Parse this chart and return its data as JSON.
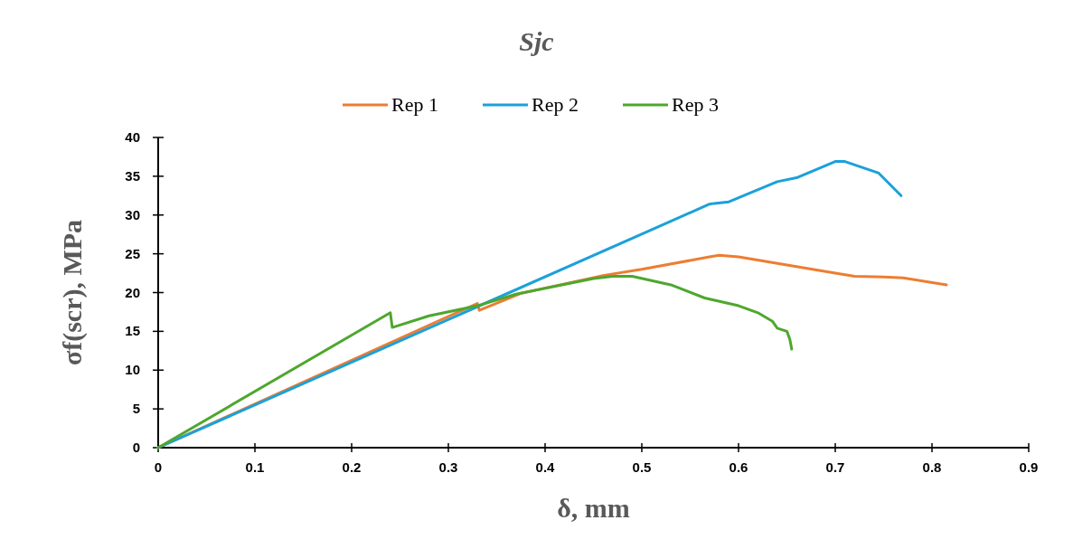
{
  "chart_data": {
    "type": "line",
    "title": "Sjc",
    "xlabel": "δ, mm",
    "ylabel": "σf(scr), MPa",
    "xlim": [
      0,
      0.9
    ],
    "xticks": [
      0,
      0.1,
      0.2,
      0.3,
      0.4,
      0.5,
      0.6,
      0.7,
      0.8,
      0.9
    ],
    "ylim": [
      0,
      40
    ],
    "yticks": [
      0,
      5,
      10,
      15,
      20,
      25,
      30,
      35,
      40
    ],
    "grid": false,
    "legend": "top",
    "marker": "none",
    "line_style": "solid",
    "series": [
      {
        "name": "Rep 1",
        "color": "#ed7d31",
        "x": [
          0,
          0.33,
          0.332,
          0.375,
          0.46,
          0.5,
          0.57,
          0.58,
          0.6,
          0.7,
          0.72,
          0.75,
          0.77,
          0.815
        ],
        "values": [
          0,
          18.6,
          17.7,
          19.9,
          22.2,
          23,
          24.6,
          24.8,
          24.6,
          22.5,
          22.1,
          22,
          21.9,
          21
        ]
      },
      {
        "name": "Rep 2",
        "color": "#1ba1d9",
        "x": [
          0,
          0.57,
          0.575,
          0.59,
          0.64,
          0.66,
          0.7,
          0.71,
          0.745,
          0.768
        ],
        "values": [
          0,
          31.4,
          31.5,
          31.7,
          34.3,
          34.8,
          36.9,
          36.9,
          35.4,
          32.5
        ]
      },
      {
        "name": "Rep 3",
        "color": "#4ea72e",
        "x": [
          0,
          0.24,
          0.242,
          0.28,
          0.33,
          0.37,
          0.45,
          0.47,
          0.49,
          0.53,
          0.565,
          0.6,
          0.62,
          0.635,
          0.64,
          0.65,
          0.653,
          0.655
        ],
        "values": [
          0,
          17.4,
          15.5,
          17,
          18.3,
          19.8,
          21.8,
          22.1,
          22.1,
          21,
          19.3,
          18.3,
          17.4,
          16.3,
          15.4,
          15,
          14,
          12.7
        ]
      }
    ]
  }
}
